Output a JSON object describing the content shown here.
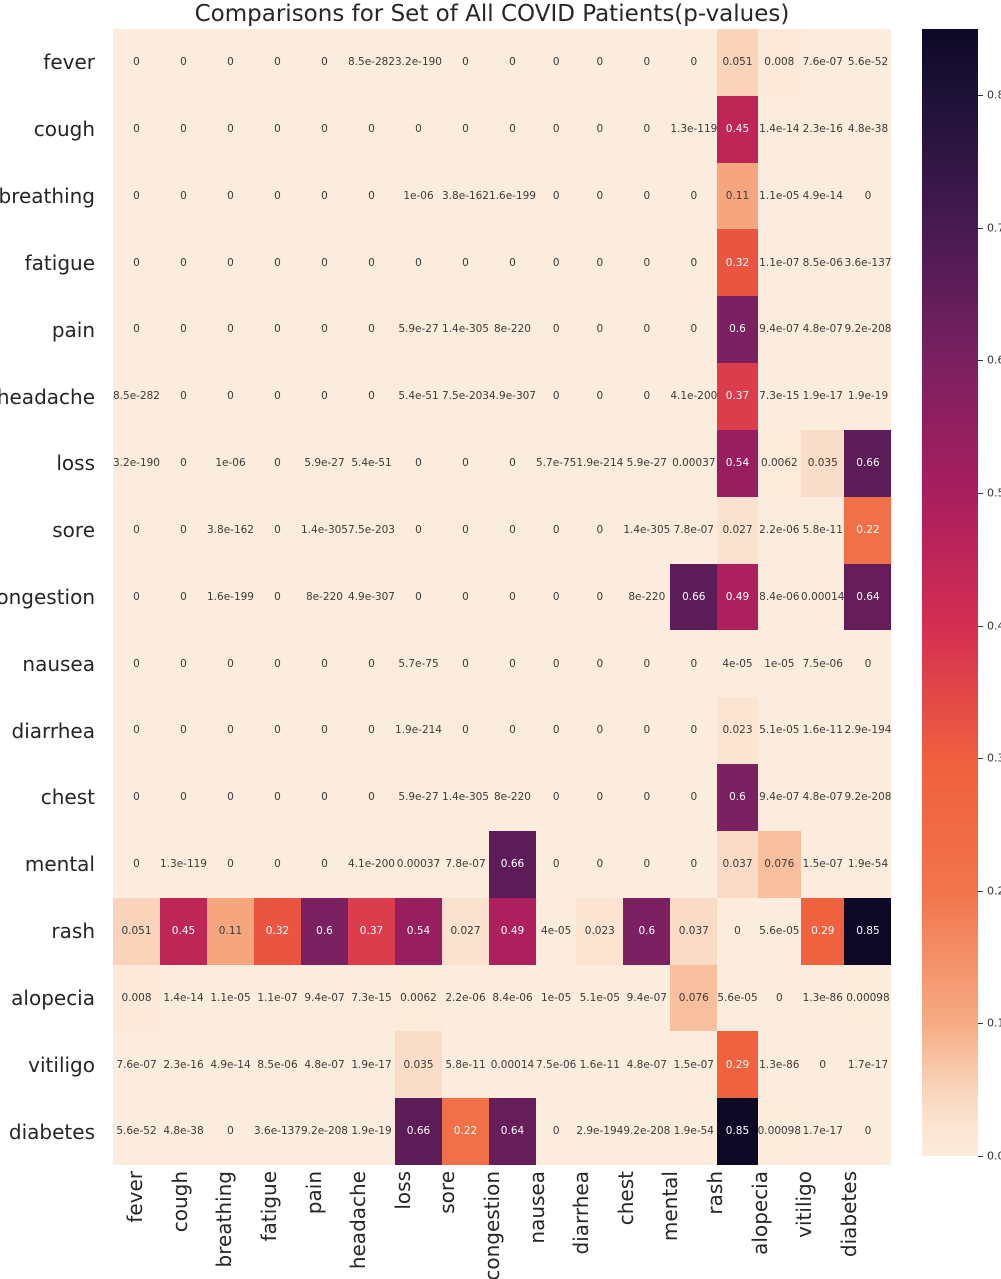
{
  "figure": {
    "title": "Comparisons for Set of All COVID Patients(p-values)"
  },
  "chart_data": {
    "type": "heatmap",
    "title": "Comparisons for Set of All COVID Patients(p-values)",
    "xlabel": "",
    "ylabel": "",
    "grid": false,
    "legend_position": "right-colorbar",
    "labels": [
      "fever",
      "cough",
      "breathing",
      "fatigue",
      "pain",
      "headache",
      "loss",
      "sore",
      "congestion",
      "nausea",
      "diarrhea",
      "chest",
      "mental",
      "rash",
      "alopecia",
      "vitiligo",
      "diabetes"
    ],
    "matrix": [
      [
        "0",
        "0",
        "0",
        "0",
        "0",
        "8.5e-282",
        "3.2e-190",
        "0",
        "0",
        "0",
        "0",
        "0",
        "0",
        "0.051",
        "0.008",
        "7.6e-07",
        "5.6e-52"
      ],
      [
        "0",
        "0",
        "0",
        "0",
        "0",
        "0",
        "0",
        "0",
        "0",
        "0",
        "0",
        "0",
        "1.3e-119",
        "0.45",
        "1.4e-14",
        "2.3e-16",
        "4.8e-38"
      ],
      [
        "0",
        "0",
        "0",
        "0",
        "0",
        "0",
        "1e-06",
        "3.8e-162",
        "1.6e-199",
        "0",
        "0",
        "0",
        "0",
        "0.11",
        "1.1e-05",
        "4.9e-14",
        "0"
      ],
      [
        "0",
        "0",
        "0",
        "0",
        "0",
        "0",
        "0",
        "0",
        "0",
        "0",
        "0",
        "0",
        "0",
        "0.32",
        "1.1e-07",
        "8.5e-06",
        "3.6e-137"
      ],
      [
        "0",
        "0",
        "0",
        "0",
        "0",
        "0",
        "5.9e-27",
        "1.4e-305",
        "8e-220",
        "0",
        "0",
        "0",
        "0",
        "0.6",
        "9.4e-07",
        "4.8e-07",
        "9.2e-208"
      ],
      [
        "8.5e-282",
        "0",
        "0",
        "0",
        "0",
        "0",
        "5.4e-51",
        "7.5e-203",
        "4.9e-307",
        "0",
        "0",
        "0",
        "4.1e-200",
        "0.37",
        "7.3e-15",
        "1.9e-17",
        "1.9e-19"
      ],
      [
        "3.2e-190",
        "0",
        "1e-06",
        "0",
        "5.9e-27",
        "5.4e-51",
        "0",
        "0",
        "0",
        "5.7e-75",
        "1.9e-214",
        "5.9e-27",
        "0.00037",
        "0.54",
        "0.0062",
        "0.035",
        "0.66"
      ],
      [
        "0",
        "0",
        "3.8e-162",
        "0",
        "1.4e-305",
        "7.5e-203",
        "0",
        "0",
        "0",
        "0",
        "0",
        "1.4e-305",
        "7.8e-07",
        "0.027",
        "2.2e-06",
        "5.8e-11",
        "0.22"
      ],
      [
        "0",
        "0",
        "1.6e-199",
        "0",
        "8e-220",
        "4.9e-307",
        "0",
        "0",
        "0",
        "0",
        "0",
        "8e-220",
        "0.66",
        "0.49",
        "8.4e-06",
        "0.00014",
        "0.64"
      ],
      [
        "0",
        "0",
        "0",
        "0",
        "0",
        "0",
        "5.7e-75",
        "0",
        "0",
        "0",
        "0",
        "0",
        "0",
        "4e-05",
        "1e-05",
        "7.5e-06",
        "0"
      ],
      [
        "0",
        "0",
        "0",
        "0",
        "0",
        "0",
        "1.9e-214",
        "0",
        "0",
        "0",
        "0",
        "0",
        "0",
        "0.023",
        "5.1e-05",
        "1.6e-11",
        "2.9e-194"
      ],
      [
        "0",
        "0",
        "0",
        "0",
        "0",
        "0",
        "5.9e-27",
        "1.4e-305",
        "8e-220",
        "0",
        "0",
        "0",
        "0",
        "0.6",
        "9.4e-07",
        "4.8e-07",
        "9.2e-208"
      ],
      [
        "0",
        "1.3e-119",
        "0",
        "0",
        "0",
        "4.1e-200",
        "0.00037",
        "7.8e-07",
        "0.66",
        "0",
        "0",
        "0",
        "0",
        "0.037",
        "0.076",
        "1.5e-07",
        "1.9e-54"
      ],
      [
        "0.051",
        "0.45",
        "0.11",
        "0.32",
        "0.6",
        "0.37",
        "0.54",
        "0.027",
        "0.49",
        "4e-05",
        "0.023",
        "0.6",
        "0.037",
        "0",
        "5.6e-05",
        "0.29",
        "0.85"
      ],
      [
        "0.008",
        "1.4e-14",
        "1.1e-05",
        "1.1e-07",
        "9.4e-07",
        "7.3e-15",
        "0.0062",
        "2.2e-06",
        "8.4e-06",
        "1e-05",
        "5.1e-05",
        "9.4e-07",
        "0.076",
        "5.6e-05",
        "0",
        "1.3e-86",
        "0.00098"
      ],
      [
        "7.6e-07",
        "2.3e-16",
        "4.9e-14",
        "8.5e-06",
        "4.8e-07",
        "1.9e-17",
        "0.035",
        "5.8e-11",
        "0.00014",
        "7.5e-06",
        "1.6e-11",
        "4.8e-07",
        "1.5e-07",
        "0.29",
        "1.3e-86",
        "0",
        "1.7e-17"
      ],
      [
        "5.6e-52",
        "4.8e-38",
        "0",
        "3.6e-137",
        "9.2e-208",
        "1.9e-19",
        "0.66",
        "0.22",
        "0.64",
        "0",
        "2.9e-194",
        "9.2e-208",
        "1.9e-54",
        "0.85",
        "0.00098",
        "1.7e-17",
        "0"
      ]
    ],
    "colormap": {
      "name": "rocket_r",
      "anchors": [
        [
          0.0,
          "#fcecdd"
        ],
        [
          0.025,
          "#fbe3d0"
        ],
        [
          0.05,
          "#f9d5bb"
        ],
        [
          0.1,
          "#f6ab84"
        ],
        [
          0.2,
          "#f2744b"
        ],
        [
          0.3,
          "#ef5f3e"
        ],
        [
          0.4,
          "#d42e52"
        ],
        [
          0.5,
          "#a91e5e"
        ],
        [
          0.6,
          "#7b2060"
        ],
        [
          0.7,
          "#471a52"
        ],
        [
          0.8,
          "#1d1137"
        ],
        [
          0.85,
          "#0d0826"
        ]
      ]
    },
    "colorbar": {
      "vmin": 0.0,
      "vmax": 0.85,
      "tick_labels": [
        "0.8",
        "0.7",
        "0.6",
        "0.5",
        "0.4",
        "0.3",
        "0.2",
        "0.1",
        "0.0"
      ],
      "tick_values": [
        0.8,
        0.7,
        0.6,
        0.5,
        0.4,
        0.3,
        0.2,
        0.1,
        0.0
      ]
    },
    "annotation_colors": {
      "on_light": "#3d3a37",
      "on_dark": "#ffffff"
    },
    "axis_label_color": "#262626",
    "title_color": "#262626"
  }
}
